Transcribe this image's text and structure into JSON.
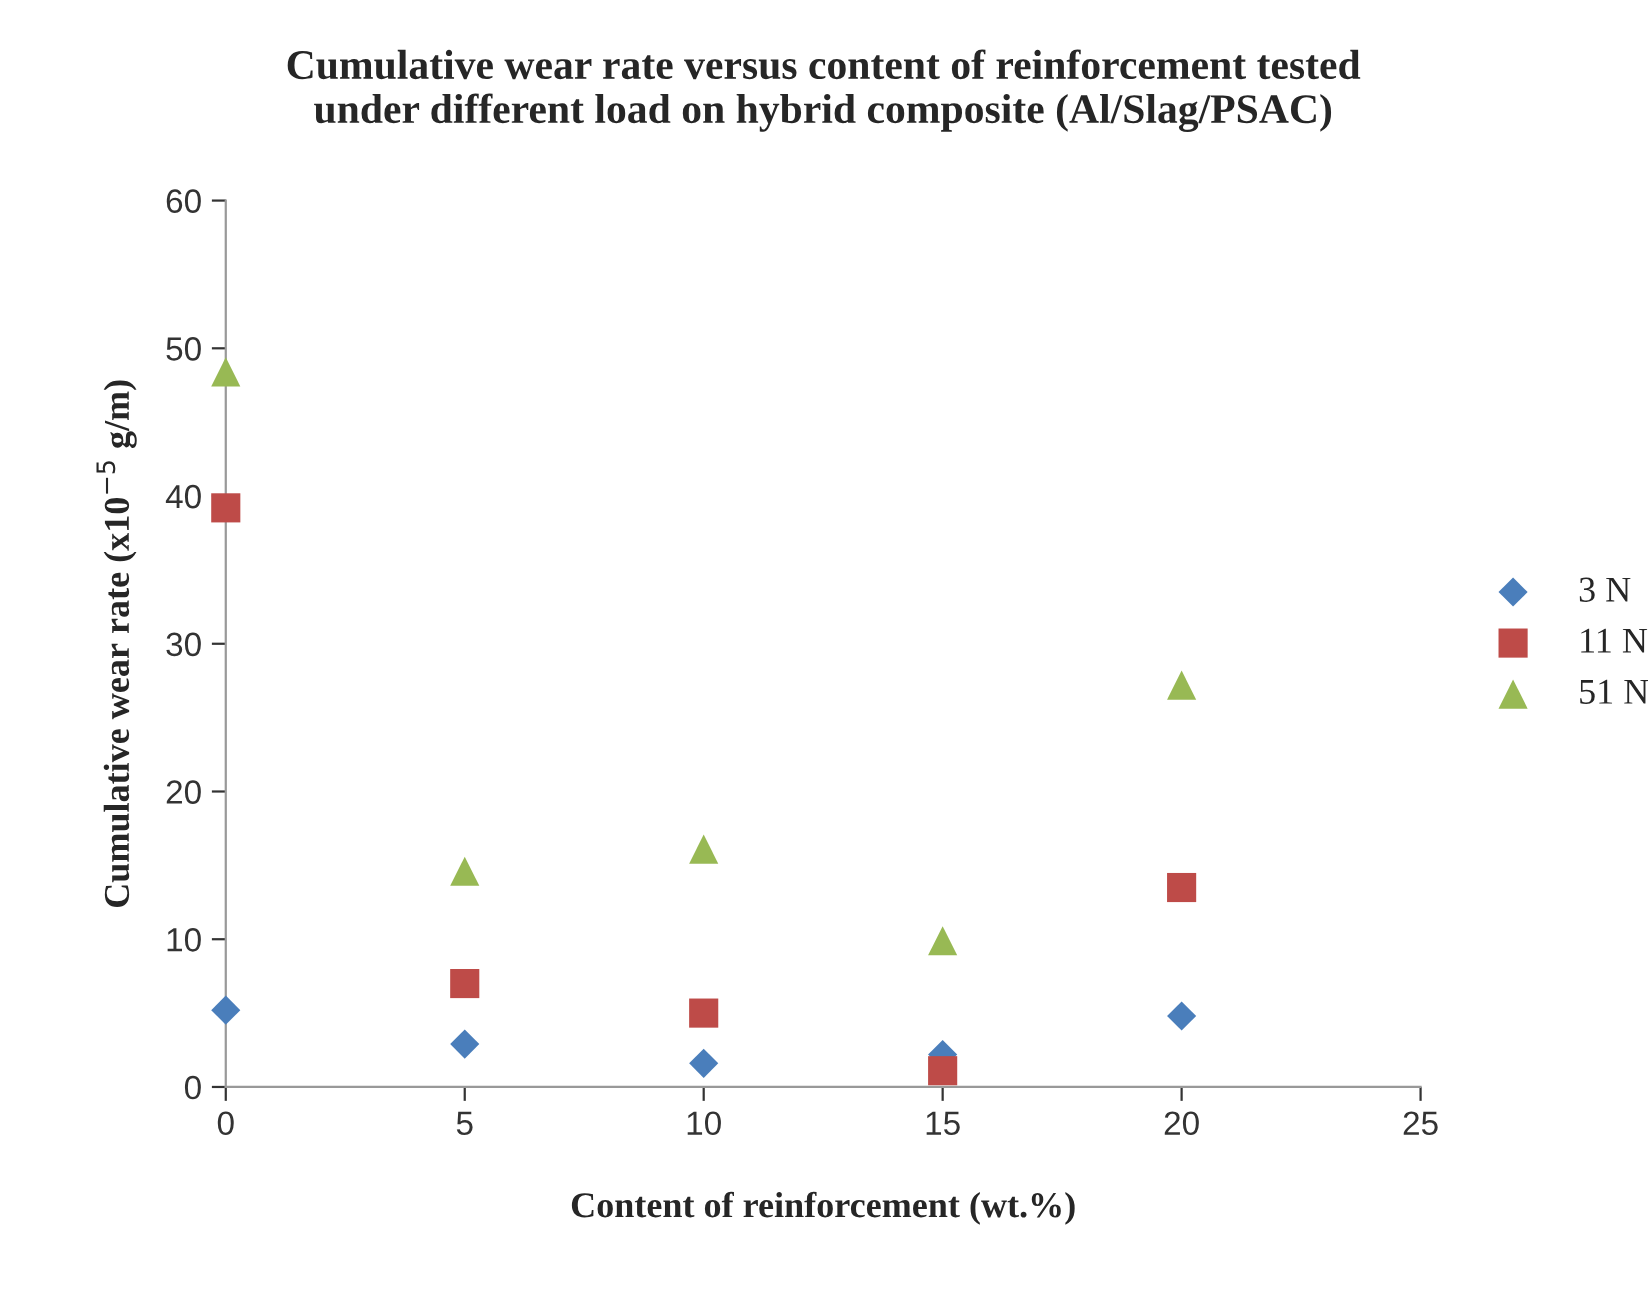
{
  "chart_data": {
    "type": "scatter",
    "title": "Cumulative wear rate versus content of reinforcement tested\nunder different load on hybrid composite (Al/Slag/PSAC)",
    "xlabel": "Content of reinforcement (wt.%)",
    "ylabel": "Cumulative wear rate (x10$^{−5}$ g/m)",
    "x": [
      0,
      5,
      10,
      15,
      20
    ],
    "series": [
      {
        "name": "3 N",
        "color": "#4a7ebb",
        "marker": "diamond",
        "values": [
          5.2,
          2.9,
          1.6,
          2.2,
          4.8
        ]
      },
      {
        "name": "11 N",
        "color": "#be4b48",
        "marker": "square",
        "values": [
          39.2,
          7.0,
          5.0,
          1.1,
          13.5
        ]
      },
      {
        "name": "51 N",
        "color": "#98b954",
        "marker": "triangle",
        "values": [
          48.4,
          14.6,
          16.1,
          9.9,
          27.2
        ]
      }
    ],
    "xlim": [
      0,
      25
    ],
    "xticks": [
      0,
      5,
      10,
      15,
      20,
      25
    ],
    "ylim": [
      0,
      60
    ],
    "yticks": [
      0,
      10,
      20,
      30,
      40,
      50,
      60
    ],
    "grid": false,
    "legend": "right"
  }
}
